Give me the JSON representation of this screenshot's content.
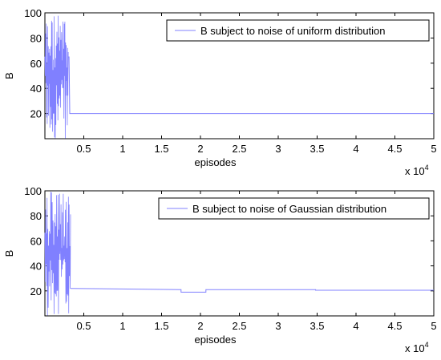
{
  "chart_data": [
    {
      "type": "line",
      "xlabel": "episodes",
      "ylabel": "B",
      "x_multiplier": "x 10^4",
      "xlim": [
        0,
        5
      ],
      "ylim": [
        0,
        100
      ],
      "xticks": [
        0.5,
        1,
        1.5,
        2,
        2.5,
        3,
        3.5,
        4,
        4.5,
        5
      ],
      "xtick_labels": [
        "0.5",
        "1",
        "1.5",
        "2",
        "2.5",
        "3",
        "3.5",
        "4",
        "4.5",
        "5"
      ],
      "yticks": [
        20,
        40,
        60,
        80,
        100
      ],
      "ytick_labels": [
        "20",
        "40",
        "60",
        "80",
        "100"
      ],
      "legend_location": "top-right",
      "series": [
        {
          "name": "B subject to noise of uniform distribution",
          "color": "#8080ff",
          "noisy_segment": {
            "x_start": 0.0,
            "x_end": 0.3,
            "y_min": 0,
            "y_max": 100
          },
          "points": [
            [
              0.3,
              65
            ],
            [
              0.31,
              65
            ],
            [
              0.32,
              20
            ],
            [
              5.0,
              20
            ]
          ]
        }
      ]
    },
    {
      "type": "line",
      "xlabel": "episodes",
      "ylabel": "B",
      "x_multiplier": "x 10^4",
      "xlim": [
        0,
        5
      ],
      "ylim": [
        0,
        100
      ],
      "xticks": [
        0.5,
        1,
        1.5,
        2,
        2.5,
        3,
        3.5,
        4,
        4.5,
        5
      ],
      "xtick_labels": [
        "0.5",
        "1",
        "1.5",
        "2",
        "2.5",
        "3",
        "3.5",
        "4",
        "4.5",
        "5"
      ],
      "yticks": [
        20,
        40,
        60,
        80,
        100
      ],
      "ytick_labels": [
        "20",
        "40",
        "60",
        "80",
        "100"
      ],
      "legend_location": "top-right",
      "series": [
        {
          "name": "B subject to noise of Gaussian distribution",
          "color": "#8080ff",
          "noisy_segment": {
            "x_start": 0.0,
            "x_end": 0.33,
            "y_min": 0,
            "y_max": 100
          },
          "points": [
            [
              0.33,
              22
            ],
            [
              1.75,
              21
            ],
            [
              1.75,
              19
            ],
            [
              2.07,
              19
            ],
            [
              2.07,
              21
            ],
            [
              3.48,
              21
            ],
            [
              3.48,
              20.5
            ],
            [
              5.0,
              20.5
            ]
          ]
        }
      ]
    }
  ]
}
